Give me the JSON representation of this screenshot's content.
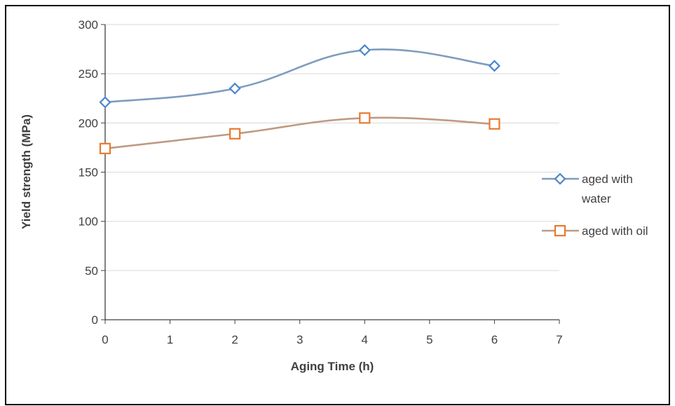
{
  "chart_data": {
    "type": "line",
    "xlabel": "Aging Time (h)",
    "ylabel": "Yield strength (MPa)",
    "xlim": [
      0,
      7
    ],
    "ylim": [
      0,
      300
    ],
    "x_ticks": [
      "0",
      "1",
      "2",
      "3",
      "4",
      "5",
      "6",
      "7"
    ],
    "y_ticks": [
      "0",
      "50",
      "100",
      "150",
      "200",
      "250",
      "300"
    ],
    "grid": "horizontal",
    "smooth": true,
    "legend_position": "right",
    "series": [
      {
        "name": "aged with water",
        "legend_lines": [
          "aged with",
          "water"
        ],
        "marker": "diamond",
        "line_color": "#7f9cbd",
        "marker_color": "#4a86c8",
        "x": [
          0,
          2,
          4,
          6
        ],
        "y": [
          221,
          235,
          274,
          258
        ]
      },
      {
        "name": "aged with oil",
        "legend_lines": [
          "aged with oil"
        ],
        "marker": "square",
        "line_color": "#c09a82",
        "marker_color": "#e8792f",
        "x": [
          0,
          2,
          4,
          6
        ],
        "y": [
          174,
          189,
          205,
          199
        ]
      }
    ]
  }
}
